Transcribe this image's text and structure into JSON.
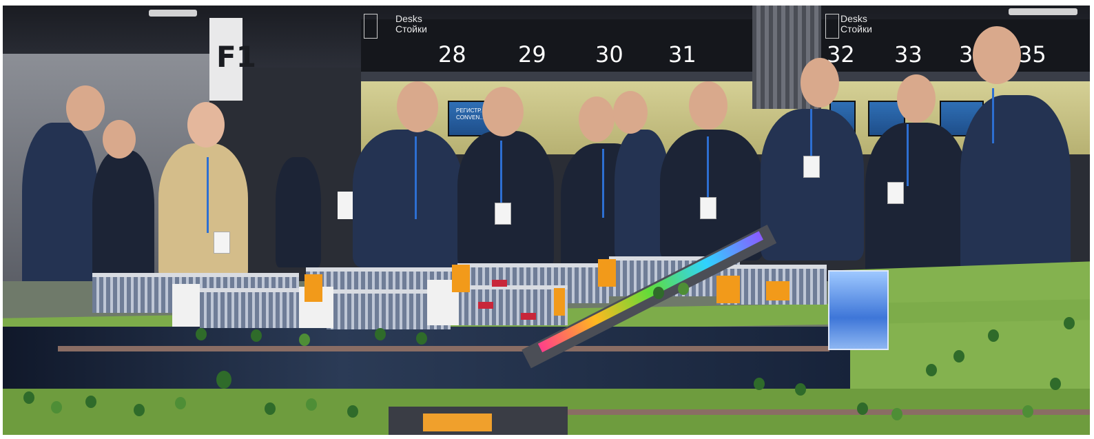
{
  "signage": {
    "desks_left_en": "Desks",
    "desks_left_ru": "Стойки",
    "desks_right_en": "Desks",
    "desks_right_ru": "Стойки",
    "f1_label": "F1",
    "desk_numbers": [
      "28",
      "29",
      "30",
      "31",
      "32",
      "33",
      "3",
      "35"
    ]
  },
  "screens": {
    "registration_text": "РЕГИСТР... CONVEN..."
  },
  "colors": {
    "background": "#ffffff",
    "accent_orange": "#f29a1a",
    "tower_blue": "#3e76d8",
    "lanyard_blue": "#2d6fd2"
  }
}
